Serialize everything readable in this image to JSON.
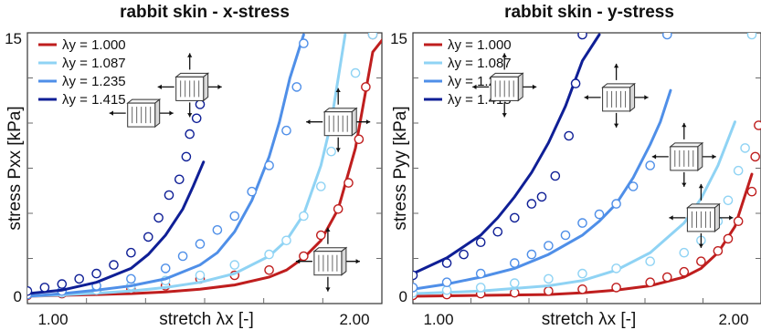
{
  "colors": {
    "s1": "#bf1e1e",
    "s2": "#8fd3f4",
    "s3": "#4f8fe8",
    "s4": "#0f1f96",
    "axis": "#333333",
    "tick": "#6b6b6b"
  },
  "chart_data": [
    {
      "type": "line",
      "title": "rabbit skin - x-stress",
      "xlabel": "stretch λx [-]",
      "ylabel": "stress Pxx [kPa]",
      "xlim": [
        1.0,
        2.0
      ],
      "ylim": [
        0,
        15
      ],
      "xtick_labels": [
        "1.00",
        "2.00"
      ],
      "ytick_labels": [
        "0",
        "15"
      ],
      "legend_position": "top-left",
      "series": [
        {
          "name": "λy = 1.000",
          "color_key": "s1",
          "curve": [
            [
              1.0,
              0.0
            ],
            [
              1.1,
              0.05
            ],
            [
              1.2,
              0.1
            ],
            [
              1.3,
              0.15
            ],
            [
              1.4,
              0.25
            ],
            [
              1.5,
              0.4
            ],
            [
              1.6,
              0.65
            ],
            [
              1.7,
              1.1
            ],
            [
              1.75,
              1.5
            ],
            [
              1.8,
              2.2
            ],
            [
              1.85,
              3.2
            ],
            [
              1.9,
              5.0
            ],
            [
              1.95,
              8.5
            ],
            [
              2.0,
              14.0
            ],
            [
              2.04,
              15.0
            ]
          ],
          "points": [
            [
              1.0,
              0.05
            ],
            [
              1.1,
              0.15
            ],
            [
              1.2,
              0.3
            ],
            [
              1.3,
              0.4
            ],
            [
              1.4,
              0.6
            ],
            [
              1.5,
              1.0
            ],
            [
              1.6,
              1.2
            ],
            [
              1.7,
              1.5
            ],
            [
              1.8,
              2.3
            ],
            [
              1.85,
              3.5
            ],
            [
              1.9,
              5.0
            ],
            [
              1.93,
              6.5
            ],
            [
              1.96,
              9.0
            ],
            [
              1.98,
              12.0
            ],
            [
              2.0,
              15.0
            ]
          ]
        },
        {
          "name": "λy = 1.087",
          "color_key": "s2",
          "curve": [
            [
              1.0,
              0.0
            ],
            [
              1.1,
              0.08
            ],
            [
              1.2,
              0.18
            ],
            [
              1.3,
              0.3
            ],
            [
              1.4,
              0.5
            ],
            [
              1.5,
              0.8
            ],
            [
              1.6,
              1.3
            ],
            [
              1.7,
              2.3
            ],
            [
              1.75,
              3.2
            ],
            [
              1.8,
              4.7
            ],
            [
              1.85,
              7.5
            ],
            [
              1.88,
              10.0
            ],
            [
              1.92,
              15.0
            ]
          ],
          "points": [
            [
              1.0,
              0.1
            ],
            [
              1.1,
              0.2
            ],
            [
              1.2,
              0.35
            ],
            [
              1.3,
              0.6
            ],
            [
              1.4,
              0.9
            ],
            [
              1.5,
              1.2
            ],
            [
              1.6,
              1.8
            ],
            [
              1.7,
              2.4
            ],
            [
              1.75,
              3.2
            ],
            [
              1.8,
              4.6
            ],
            [
              1.85,
              6.3
            ],
            [
              1.88,
              8.3
            ],
            [
              1.9,
              10.3
            ],
            [
              1.95,
              12.8
            ],
            [
              2.0,
              15.0
            ]
          ]
        },
        {
          "name": "λy = 1.235",
          "color_key": "s3",
          "curve": [
            [
              1.0,
              0.0
            ],
            [
              1.1,
              0.15
            ],
            [
              1.2,
              0.35
            ],
            [
              1.3,
              0.6
            ],
            [
              1.4,
              1.0
            ],
            [
              1.5,
              1.8
            ],
            [
              1.55,
              2.5
            ],
            [
              1.6,
              3.7
            ],
            [
              1.65,
              5.5
            ],
            [
              1.7,
              8.0
            ],
            [
              1.73,
              10.0
            ],
            [
              1.76,
              12.5
            ],
            [
              1.8,
              15.0
            ]
          ],
          "points": [
            [
              1.0,
              0.1
            ],
            [
              1.1,
              0.3
            ],
            [
              1.2,
              0.6
            ],
            [
              1.3,
              1.0
            ],
            [
              1.4,
              1.6
            ],
            [
              1.45,
              2.3
            ],
            [
              1.5,
              3.0
            ],
            [
              1.55,
              3.8
            ],
            [
              1.6,
              4.6
            ],
            [
              1.65,
              6.0
            ],
            [
              1.7,
              7.5
            ],
            [
              1.75,
              9.5
            ],
            [
              1.78,
              12.0
            ],
            [
              1.8,
              14.5
            ]
          ]
        },
        {
          "name": "λy = 1.415",
          "color_key": "s4",
          "curve": [
            [
              1.0,
              0.15
            ],
            [
              1.1,
              0.35
            ],
            [
              1.2,
              0.8
            ],
            [
              1.3,
              1.6
            ],
            [
              1.35,
              2.4
            ],
            [
              1.4,
              3.5
            ],
            [
              1.45,
              5.0
            ],
            [
              1.48,
              6.3
            ],
            [
              1.51,
              7.7
            ]
          ],
          "points": [
            [
              1.0,
              0.3
            ],
            [
              1.05,
              0.5
            ],
            [
              1.1,
              0.7
            ],
            [
              1.15,
              1.0
            ],
            [
              1.2,
              1.3
            ],
            [
              1.25,
              1.8
            ],
            [
              1.3,
              2.5
            ],
            [
              1.35,
              3.4
            ],
            [
              1.38,
              4.5
            ],
            [
              1.41,
              5.8
            ],
            [
              1.44,
              6.7
            ],
            [
              1.46,
              8.0
            ],
            [
              1.47,
              9.3
            ],
            [
              1.49,
              10.2
            ],
            [
              1.5,
              11.0
            ]
          ]
        }
      ]
    },
    {
      "type": "line",
      "title": "rabbit skin - y-stress",
      "xlabel": "stretch λx [-]",
      "ylabel": "stress Pyy [kPa]",
      "xlim": [
        1.0,
        2.0
      ],
      "ylim": [
        0,
        15
      ],
      "xtick_labels": [
        "1.00",
        "2.00"
      ],
      "ytick_labels": [
        "0",
        "15"
      ],
      "legend_position": "top-left",
      "series": [
        {
          "name": "λy = 1.000",
          "color_key": "s1",
          "curve": [
            [
              1.0,
              0.0
            ],
            [
              1.2,
              0.05
            ],
            [
              1.4,
              0.1
            ],
            [
              1.5,
              0.2
            ],
            [
              1.6,
              0.35
            ],
            [
              1.7,
              0.6
            ],
            [
              1.8,
              1.1
            ],
            [
              1.85,
              1.6
            ],
            [
              1.9,
              2.5
            ],
            [
              1.95,
              4.0
            ],
            [
              2.0,
              7.0
            ]
          ],
          "points": [
            [
              1.0,
              0.05
            ],
            [
              1.1,
              0.1
            ],
            [
              1.2,
              0.15
            ],
            [
              1.3,
              0.2
            ],
            [
              1.4,
              0.3
            ],
            [
              1.5,
              0.4
            ],
            [
              1.6,
              0.5
            ],
            [
              1.7,
              0.8
            ],
            [
              1.75,
              1.1
            ],
            [
              1.8,
              1.4
            ],
            [
              1.85,
              2.0
            ],
            [
              1.9,
              2.6
            ],
            [
              1.93,
              3.3
            ],
            [
              1.96,
              4.3
            ],
            [
              2.0,
              6.0
            ],
            [
              2.01,
              8.0
            ],
            [
              2.02,
              9.8
            ]
          ]
        },
        {
          "name": "λy = 1.087",
          "color_key": "s2",
          "curve": [
            [
              1.0,
              0.15
            ],
            [
              1.2,
              0.3
            ],
            [
              1.4,
              0.6
            ],
            [
              1.5,
              0.9
            ],
            [
              1.6,
              1.5
            ],
            [
              1.7,
              2.5
            ],
            [
              1.8,
              4.2
            ],
            [
              1.85,
              5.6
            ],
            [
              1.9,
              7.5
            ],
            [
              1.95,
              10.0
            ]
          ],
          "points": [
            [
              1.0,
              0.2
            ],
            [
              1.1,
              0.35
            ],
            [
              1.2,
              0.5
            ],
            [
              1.3,
              0.75
            ],
            [
              1.4,
              1.0
            ],
            [
              1.5,
              1.3
            ],
            [
              1.6,
              1.6
            ],
            [
              1.7,
              2.0
            ],
            [
              1.8,
              2.5
            ],
            [
              1.85,
              3.2
            ],
            [
              1.9,
              4.3
            ],
            [
              1.93,
              5.5
            ],
            [
              1.96,
              7.2
            ],
            [
              1.98,
              8.5
            ],
            [
              2.0,
              15.0
            ]
          ]
        },
        {
          "name": "λy = 1.235",
          "color_key": "s3",
          "curve": [
            [
              1.0,
              0.4
            ],
            [
              1.1,
              0.7
            ],
            [
              1.2,
              1.1
            ],
            [
              1.3,
              1.6
            ],
            [
              1.4,
              2.4
            ],
            [
              1.5,
              3.5
            ],
            [
              1.55,
              4.3
            ],
            [
              1.6,
              5.3
            ],
            [
              1.65,
              6.8
            ],
            [
              1.7,
              8.7
            ],
            [
              1.73,
              10.0
            ],
            [
              1.76,
              11.8
            ]
          ],
          "points": [
            [
              1.0,
              0.5
            ],
            [
              1.1,
              0.8
            ],
            [
              1.2,
              1.3
            ],
            [
              1.3,
              1.9
            ],
            [
              1.35,
              2.4
            ],
            [
              1.4,
              2.9
            ],
            [
              1.45,
              3.5
            ],
            [
              1.5,
              4.2
            ],
            [
              1.55,
              4.7
            ],
            [
              1.6,
              5.3
            ],
            [
              1.65,
              6.3
            ],
            [
              1.7,
              7.5
            ],
            [
              1.75,
              15.0
            ]
          ]
        },
        {
          "name": "λy = 1.415",
          "color_key": "s4",
          "curve": [
            [
              1.0,
              1.3
            ],
            [
              1.1,
              2.2
            ],
            [
              1.2,
              3.5
            ],
            [
              1.25,
              4.5
            ],
            [
              1.3,
              5.7
            ],
            [
              1.35,
              7.1
            ],
            [
              1.4,
              8.8
            ],
            [
              1.45,
              10.9
            ],
            [
              1.5,
              13.5
            ],
            [
              1.55,
              15.0
            ]
          ],
          "points": [
            [
              1.0,
              1.2
            ],
            [
              1.1,
              1.9
            ],
            [
              1.15,
              2.4
            ],
            [
              1.2,
              3.1
            ],
            [
              1.25,
              3.7
            ],
            [
              1.3,
              4.5
            ],
            [
              1.35,
              5.3
            ],
            [
              1.38,
              5.7
            ],
            [
              1.42,
              6.9
            ],
            [
              1.46,
              9.2
            ],
            [
              1.48,
              12.2
            ],
            [
              1.5,
              15.0
            ]
          ]
        }
      ]
    }
  ],
  "specimen_icons": [
    {
      "panel": 0,
      "arrows": "h",
      "cx": 1.33,
      "cy": 10.5
    },
    {
      "panel": 0,
      "arrows": "hv",
      "cx": 1.47,
      "cy": 12.0
    },
    {
      "panel": 0,
      "arrows": "hv",
      "cx": 1.9,
      "cy": 10.0
    },
    {
      "panel": 0,
      "arrows": "hv",
      "cx": 1.87,
      "cy": 2.0
    },
    {
      "panel": 1,
      "arrows": "hv",
      "cx": 1.27,
      "cy": 12.0
    },
    {
      "panel": 1,
      "arrows": "hv",
      "cx": 1.6,
      "cy": 11.4
    },
    {
      "panel": 1,
      "arrows": "hv",
      "cx": 1.8,
      "cy": 8.0
    },
    {
      "panel": 1,
      "arrows": "hv",
      "cx": 1.85,
      "cy": 4.5
    }
  ]
}
